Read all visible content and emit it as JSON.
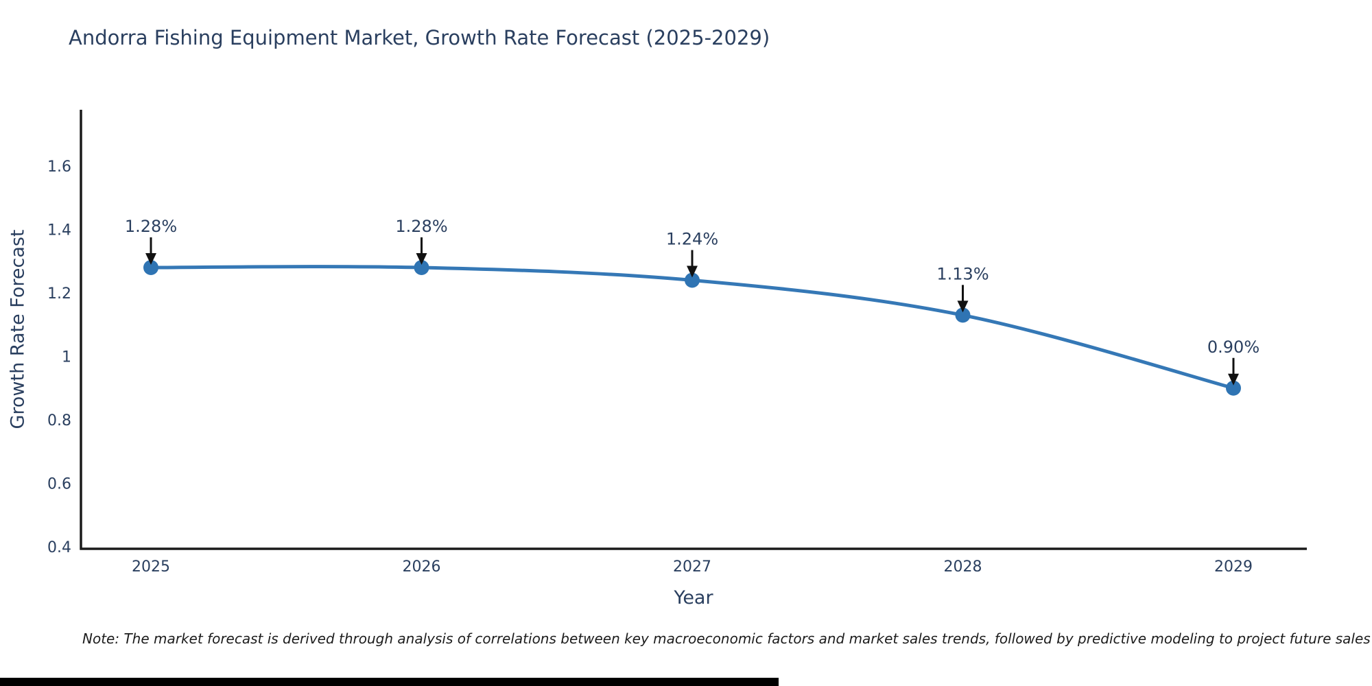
{
  "title": "Andorra Fishing Equipment Market, Growth Rate Forecast (2025-2029)",
  "note": "Note: The market forecast is derived through analysis of correlations between key macroeconomic factors and market sales trends, followed by predictive modeling to project future sales",
  "chart_data": {
    "type": "line",
    "title": "Andorra Fishing Equipment Market, Growth Rate Forecast (2025-2029)",
    "x": [
      2025,
      2026,
      2027,
      2028,
      2029
    ],
    "x_tick_labels": [
      "2025",
      "2026",
      "2027",
      "2028",
      "2029"
    ],
    "series": [
      {
        "name": "Growth Rate Forecast",
        "values": [
          1.28,
          1.28,
          1.24,
          1.13,
          0.9
        ]
      }
    ],
    "point_labels": [
      "1.28%",
      "1.28%",
      "1.24%",
      "1.13%",
      "0.90%"
    ],
    "xlabel": "Year",
    "ylabel": "Growth Rate Forecast",
    "ytick_values": [
      0.4,
      0.6,
      0.8,
      1,
      1.2,
      1.4,
      1.6
    ],
    "ytick_labels": [
      "0.4",
      "0.6",
      "0.8",
      "1",
      "1.2",
      "1.4",
      "1.6"
    ],
    "ylim": [
      0.4,
      1.78
    ],
    "grid": false,
    "legend": "none",
    "line_shape": "spline",
    "colors": {
      "line": "#3578b6",
      "marker": "#2f74b3",
      "axis": "#1a1a1a",
      "tick_text": "#2a3f5f",
      "annotation_text": "#2a3f5f",
      "arrow": "#111111"
    }
  }
}
